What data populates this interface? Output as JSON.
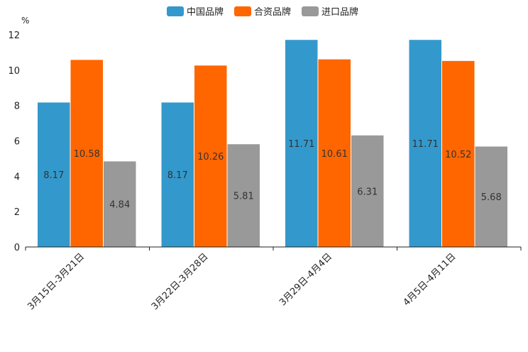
{
  "chart_data": {
    "type": "bar",
    "title": "",
    "unit_label": "%",
    "xlabel": "",
    "ylabel": "",
    "ylim": [
      0,
      12
    ],
    "yticks": [
      0,
      2,
      4,
      6,
      8,
      10,
      12
    ],
    "grid": false,
    "legend_position": "top-center",
    "categories": [
      "3月15日-3月21日",
      "3月22日-3月28日",
      "3月29日-4月4日",
      "4月5日-4月11日"
    ],
    "series": [
      {
        "name": "中国品牌",
        "color": "#3399cc",
        "values": [
          8.17,
          8.17,
          11.71,
          11.71
        ],
        "labels": [
          "8.17",
          "8.17",
          "11.71",
          "11.71"
        ]
      },
      {
        "name": "合资品牌",
        "color": "#ff6600",
        "values": [
          10.58,
          10.26,
          10.61,
          10.52
        ],
        "labels": [
          "10.58",
          "10.26",
          "10.61",
          "10.52"
        ]
      },
      {
        "name": "进口品牌",
        "color": "#999999",
        "values": [
          4.84,
          5.81,
          6.31,
          5.68
        ],
        "labels": [
          "4.84",
          "5.81",
          "6.31",
          "5.68"
        ]
      }
    ]
  }
}
